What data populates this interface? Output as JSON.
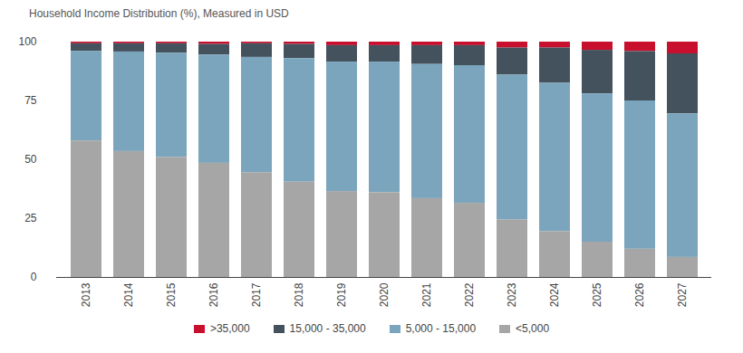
{
  "chart_data": {
    "type": "bar",
    "title": "Household Income Distribution (%), Measured in USD",
    "stacked": true,
    "legend": "bottom",
    "categories": [
      "2013",
      "2014",
      "2015",
      "2016",
      "2017",
      "2018",
      "2019",
      "2020",
      "2021",
      "2022",
      "2023",
      "2024",
      "2025",
      "2026",
      "2027"
    ],
    "series": [
      {
        "name": ">35,000",
        "color": "#c8102e",
        "values": [
          0.7,
          0.7,
          0.7,
          1,
          0.7,
          1,
          1.5,
          1.5,
          1.5,
          1.5,
          2.5,
          2.5,
          3.5,
          4,
          5
        ]
      },
      {
        "name": "15,000 - 35,000",
        "color": "#44525e",
        "values": [
          3.3,
          3.5,
          4,
          4.5,
          5.8,
          6,
          7,
          7,
          8,
          8.5,
          11.5,
          15,
          18.5,
          21,
          25.5
        ]
      },
      {
        "name": "5,000 - 15,000",
        "color": "#7aa5bd",
        "values": [
          38,
          42.3,
          44.3,
          46,
          49,
          52.5,
          55,
          55.5,
          57,
          58.5,
          61.5,
          63,
          63,
          63,
          61
        ]
      },
      {
        "name": "<5,000",
        "color": "#a6a6a6",
        "values": [
          58,
          53.5,
          51,
          48.5,
          44.5,
          40.5,
          36.5,
          36,
          33.5,
          31.5,
          24.5,
          19.5,
          15,
          12,
          8.5
        ]
      }
    ],
    "ylim": [
      0,
      100
    ],
    "yticks": [
      0,
      25,
      50,
      75,
      100
    ]
  }
}
